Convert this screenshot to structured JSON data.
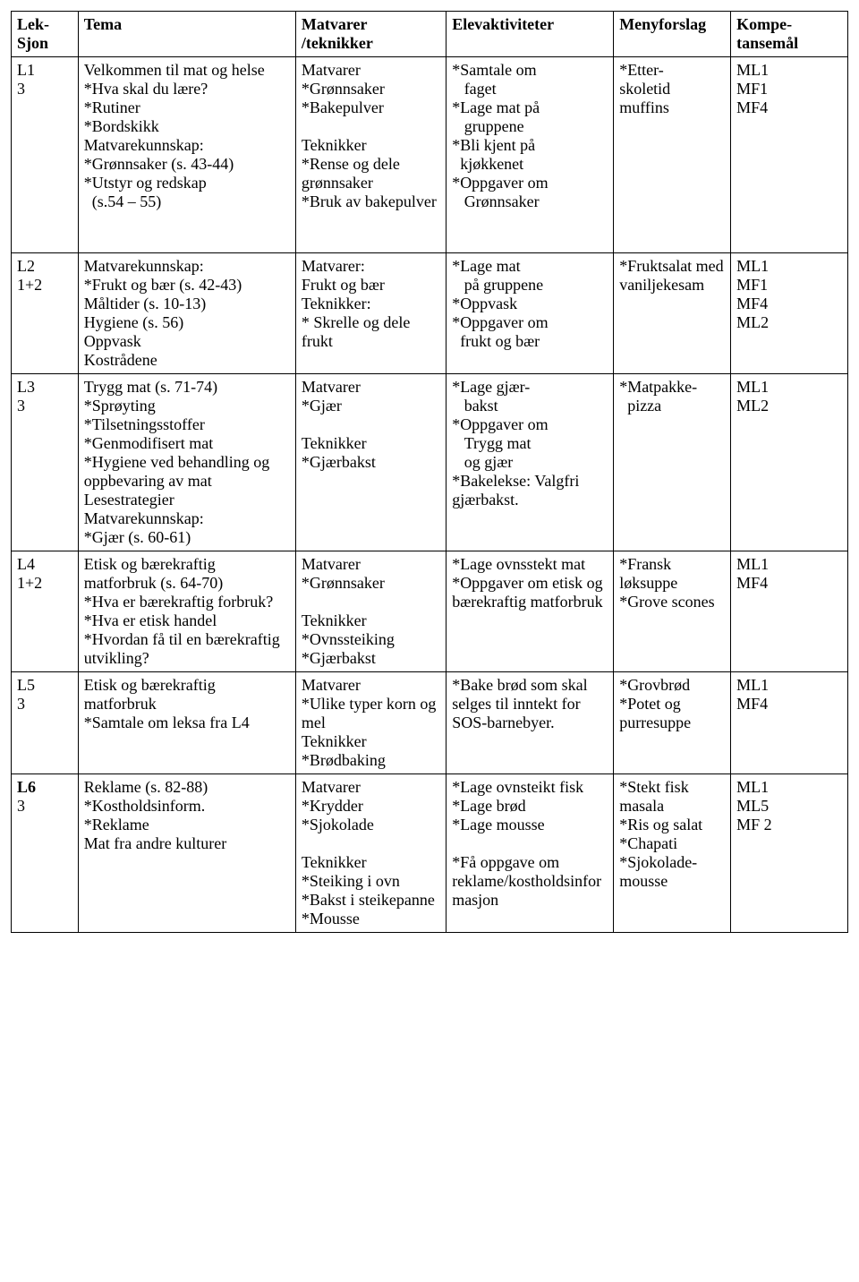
{
  "columns": [
    "Lek-\nSjon",
    "Tema",
    "Matvarer\n/teknikker",
    "Elevaktiviteter",
    "Menyforslag",
    "Kompe-\ntansemål"
  ],
  "rows": [
    {
      "leksjon": "L1\n3",
      "tema": "Velkommen til mat og helse\n*Hva skal du lære?\n*Rutiner\n*Bordskikk\nMatvarekunnskap:\n*Grønnsaker (s. 43-44)\n*Utstyr og redskap\n  (s.54 – 55)\n\n\n",
      "matvarer": "Matvarer\n*Grønnsaker\n*Bakepulver\n\nTeknikker\n*Rense og dele grønnsaker\n*Bruk av bakepulver",
      "elev": "*Samtale om\n   faget\n*Lage mat på\n   gruppene\n*Bli kjent på\n  kjøkkenet\n*Oppgaver om\n   Grønnsaker",
      "meny": "*Etter-\nskoletid\nmuffins",
      "kompe": "ML1\nMF1\nMF4"
    },
    {
      "leksjon": "L2\n1+2",
      "tema": "Matvarekunnskap:\n*Frukt og bær (s. 42-43)\nMåltider (s. 10-13)\nHygiene (s. 56)\nOppvask\nKostrådene\n",
      "matvarer": "Matvarer:\nFrukt og bær\nTeknikker:\n* Skrelle og dele frukt",
      "elev": "*Lage mat\n   på gruppene\n*Oppvask\n*Oppgaver om\n  frukt og bær",
      "meny": "*Fruktsalat med vaniljekesam",
      "kompe": "ML1\nMF1\nMF4\nML2"
    },
    {
      "leksjon": "L3\n3",
      "tema": "Trygg mat (s. 71-74)\n*Sprøyting\n*Tilsetningsstoffer\n*Genmodifisert mat\n*Hygiene ved behandling og oppbevaring av mat\nLesestrategier\nMatvarekunnskap:\n*Gjær (s. 60-61)",
      "matvarer": "Matvarer\n*Gjær\n\nTeknikker\n*Gjærbakst",
      "elev": "*Lage gjær-\n   bakst\n*Oppgaver om\n   Trygg mat\n   og gjær\n*Bakelekse: Valgfri gjærbakst.",
      "meny": "*Matpakke-\n  pizza",
      "kompe": "ML1\nML2"
    },
    {
      "leksjon": "L4\n1+2",
      "tema": "Etisk og bærekraftig matforbruk (s. 64-70)\n*Hva er bærekraftig forbruk?\n*Hva er etisk handel\n*Hvordan få til en bærekraftig utvikling?",
      "matvarer": "Matvarer\n*Grønnsaker\n\nTeknikker\n*Ovnssteiking\n*Gjærbakst",
      "elev": "*Lage ovnsstekt mat\n*Oppgaver om etisk og bærekraftig matforbruk",
      "meny": "*Fransk løksuppe\n*Grove scones",
      "kompe": "ML1\nMF4"
    },
    {
      "leksjon": "L5\n3",
      "tema": "Etisk og bærekraftig matforbruk\n*Samtale om leksa fra L4",
      "matvarer": "Matvarer\n*Ulike typer korn og mel\nTeknikker\n*Brødbaking",
      "elev": "*Bake brød som skal selges til inntekt for SOS-barnebyer.",
      "meny": "*Grovbrød\n*Potet og purresuppe",
      "kompe": "ML1\nMF4"
    },
    {
      "leksjon": "L6\n3",
      "leksjon_bold_prefix": "L6",
      "tema": "Reklame (s. 82-88)\n*Kostholdsinform.\n*Reklame\nMat fra andre kulturer",
      "matvarer": "Matvarer\n*Krydder\n*Sjokolade\n\nTeknikker\n*Steiking i ovn\n*Bakst i steikepanne\n*Mousse",
      "elev": "*Lage ovnsteikt fisk\n*Lage brød\n*Lage mousse\n\n*Få oppgave om reklame/kostholdsinformasjon",
      "meny": "*Stekt fisk masala\n*Ris og salat\n*Chapati\n*Sjokolade-\nmousse",
      "kompe": "ML1\nML5\nMF 2"
    }
  ]
}
